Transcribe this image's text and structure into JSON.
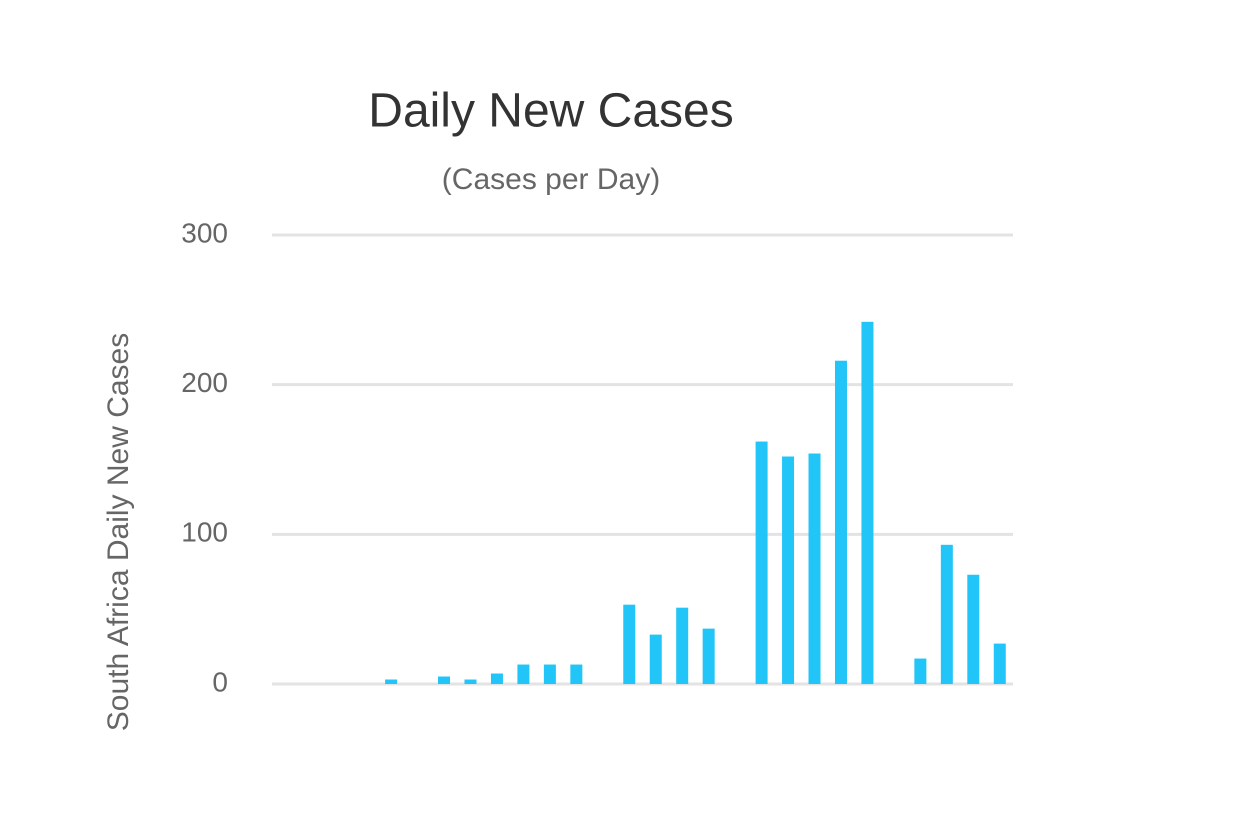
{
  "chart_data": {
    "type": "bar",
    "title": "Daily New Cases",
    "subtitle": "(Cases per Day)",
    "y_label": "South Africa Daily New Cases",
    "categories": [
      null,
      null,
      null,
      null,
      null,
      null,
      null,
      null,
      null,
      null,
      null,
      null,
      null,
      null,
      null,
      null,
      null,
      null,
      null,
      null,
      null,
      null,
      null,
      null,
      null,
      null,
      null,
      null
    ],
    "values": [
      0,
      0,
      0,
      0,
      3,
      0,
      5,
      3,
      7,
      13,
      13,
      13,
      0,
      53,
      33,
      51,
      37,
      0,
      162,
      152,
      154,
      216,
      242,
      0,
      17,
      93,
      73,
      27
    ],
    "color": "#22c5f7",
    "ylim": [
      0,
      300
    ],
    "yticks": [
      0,
      100,
      200,
      300
    ],
    "grid": true
  }
}
